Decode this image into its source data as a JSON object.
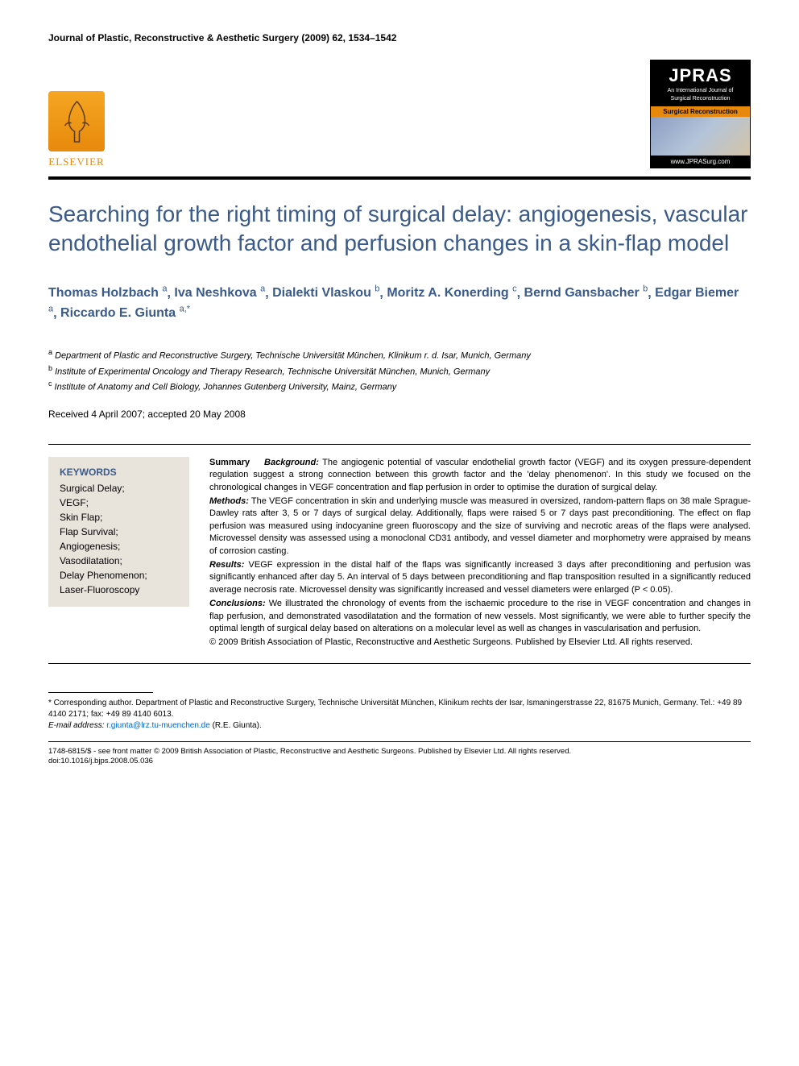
{
  "journal_header": "Journal of Plastic, Reconstructive & Aesthetic Surgery (2009) 62, 1534–1542",
  "publisher": {
    "name": "ELSEVIER",
    "logo_color": "#e8890c"
  },
  "journal_logo": {
    "acronym": "JPRAS",
    "subtitle_line1": "An International Journal of",
    "subtitle_line2": "Surgical Reconstruction",
    "strip": "Surgical Reconstruction",
    "url": "www.JPRASurg.com"
  },
  "title": "Searching for the right timing of surgical delay: angiogenesis, vascular endothelial growth factor and perfusion changes in a skin-flap model",
  "authors": [
    {
      "name": "Thomas Holzbach",
      "aff": "a"
    },
    {
      "name": "Iva Neshkova",
      "aff": "a"
    },
    {
      "name": "Dialekti Vlaskou",
      "aff": "b"
    },
    {
      "name": "Moritz A. Konerding",
      "aff": "c"
    },
    {
      "name": "Bernd Gansbacher",
      "aff": "b"
    },
    {
      "name": "Edgar Biemer",
      "aff": "a"
    },
    {
      "name": "Riccardo E. Giunta",
      "aff": "a",
      "corresponding": true
    }
  ],
  "affiliations": {
    "a": "Department of Plastic and Reconstructive Surgery, Technische Universität München, Klinikum r. d. Isar, Munich, Germany",
    "b": "Institute of Experimental Oncology and Therapy Research, Technische Universität München, Munich, Germany",
    "c": "Institute of Anatomy and Cell Biology, Johannes Gutenberg University, Mainz, Germany"
  },
  "dates": "Received 4 April 2007; accepted 20 May 2008",
  "keywords_title": "KEYWORDS",
  "keywords": "Surgical Delay;\nVEGF;\nSkin Flap;\nFlap Survival;\nAngiogenesis;\nVasodilatation;\nDelay Phenomenon;\nLaser-Fluoroscopy",
  "summary": {
    "label": "Summary",
    "background_label": "Background:",
    "background": "The angiogenic potential of vascular endothelial growth factor (VEGF) and its oxygen pressure-dependent regulation suggest a strong connection between this growth factor and the 'delay phenomenon'. In this study we focused on the chronological changes in VEGF concentration and flap perfusion in order to optimise the duration of surgical delay.",
    "methods_label": "Methods:",
    "methods": "The VEGF concentration in skin and underlying muscle was measured in oversized, random-pattern flaps on 38 male Sprague-Dawley rats after 3, 5 or 7 days of surgical delay. Additionally, flaps were raised 5 or 7 days past preconditioning. The effect on flap perfusion was measured using indocyanine green fluoroscopy and the size of surviving and necrotic areas of the flaps were analysed. Microvessel density was assessed using a monoclonal CD31 antibody, and vessel diameter and morphometry were appraised by means of corrosion casting.",
    "results_label": "Results:",
    "results": "VEGF expression in the distal half of the flaps was significantly increased 3 days after preconditioning and perfusion was significantly enhanced after day 5. An interval of 5 days between preconditioning and flap transposition resulted in a significantly reduced average necrosis rate. Microvessel density was significantly increased and vessel diameters were enlarged (P < 0.05).",
    "conclusions_label": "Conclusions:",
    "conclusions": "We illustrated the chronology of events from the ischaemic procedure to the rise in VEGF concentration and changes in flap perfusion, and demonstrated vasodilatation and the formation of new vessels. Most significantly, we were able to further specify the optimal length of surgical delay based on alterations on a molecular level as well as changes in vascularisation and perfusion.",
    "copyright": "© 2009 British Association of Plastic, Reconstructive and Aesthetic Surgeons. Published by Elsevier Ltd. All rights reserved."
  },
  "corresponding": {
    "text": "* Corresponding author. Department of Plastic and Reconstructive Surgery, Technische Universität München, Klinikum rechts der Isar, Ismaningerstrasse 22, 81675 Munich, Germany. Tel.: +49 89 4140 2171; fax: +49 89 4140 6013.",
    "email_label": "E-mail address:",
    "email": "r.giunta@lrz.tu-muenchen.de",
    "email_author": "(R.E. Giunta)."
  },
  "footer": {
    "line1": "1748-6815/$ - see front matter © 2009 British Association of Plastic, Reconstructive and Aesthetic Surgeons. Published by Elsevier Ltd. All rights reserved.",
    "line2": "doi:10.1016/j.bjps.2008.05.036"
  },
  "colors": {
    "title_color": "#3a5a8a",
    "accent": "#e8890c",
    "keywords_bg": "#e8e4dc",
    "link": "#0066cc"
  }
}
